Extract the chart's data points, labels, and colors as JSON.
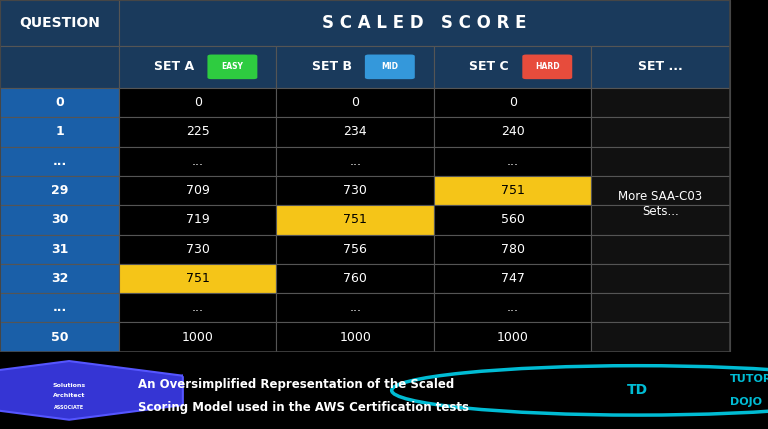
{
  "bg_color": "#000000",
  "table_bg": "#000000",
  "header_row1_bg": "#1a3a5c",
  "header_row2_bg": "#1a3a5c",
  "question_col_bg": "#1a5fa8",
  "question_col_text": "#ffffff",
  "data_bg": "#000000",
  "data_text": "#ffffff",
  "highlight_yellow": "#f5c518",
  "grid_color": "#555555",
  "title_text": "S C A L E D   S C O R E",
  "title_color": "#ffffff",
  "col_header_color": "#ffffff",
  "footer_text1": "An Oversimplified Representation of the Scaled",
  "footer_text2": "Scoring Model used in the AWS Certification tests",
  "footer_color": "#ffffff",
  "more_text": "More SAA-C03\nSets...",
  "more_text_color": "#ffffff",
  "rows": [
    {
      "q": "0",
      "a": "0",
      "b": "0",
      "c": "0",
      "ha": false,
      "hb": false,
      "hc": false
    },
    {
      "q": "1",
      "a": "225",
      "b": "234",
      "c": "240",
      "ha": false,
      "hb": false,
      "hc": false
    },
    {
      "q": "...",
      "a": "...",
      "b": "...",
      "c": "...",
      "ha": false,
      "hb": false,
      "hc": false
    },
    {
      "q": "29",
      "a": "709",
      "b": "730",
      "c": "751",
      "ha": false,
      "hb": false,
      "hc": true
    },
    {
      "q": "30",
      "a": "719",
      "b": "751",
      "c": "560",
      "ha": false,
      "hb": true,
      "hc": false
    },
    {
      "q": "31",
      "a": "730",
      "b": "756",
      "c": "780",
      "ha": false,
      "hb": false,
      "hc": false
    },
    {
      "q": "32",
      "a": "751",
      "b": "760",
      "c": "747",
      "ha": true,
      "hb": false,
      "hc": false
    },
    {
      "q": "...",
      "a": "...",
      "b": "...",
      "c": "...",
      "ha": false,
      "hb": false,
      "hc": false
    },
    {
      "q": "50",
      "a": "1000",
      "b": "1000",
      "c": "1000",
      "ha": false,
      "hb": false,
      "hc": false
    }
  ],
  "easy_color": "#2ecc40",
  "mid_color": "#3498db",
  "hard_color": "#e74c3c",
  "tutorials_color": "#00bcd4"
}
